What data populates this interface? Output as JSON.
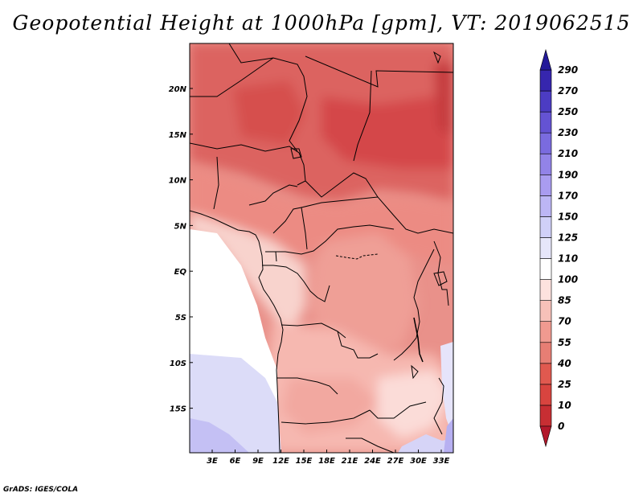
{
  "title": "Geopotential Height at 1000hPa [gpm], VT: 2019062515",
  "credit": "GrADS: IGES/COLA",
  "map": {
    "lat_labels": [
      "20N",
      "15N",
      "10N",
      "5N",
      "EQ",
      "5S",
      "10S",
      "15S"
    ],
    "lon_labels": [
      "3E",
      "6E",
      "9E",
      "12E",
      "15E",
      "18E",
      "21E",
      "24E",
      "27E",
      "30E",
      "33E"
    ]
  },
  "colorbar": {
    "levels": [
      "0",
      "10",
      "25",
      "40",
      "55",
      "70",
      "85",
      "100",
      "110",
      "125",
      "150",
      "170",
      "190",
      "210",
      "230",
      "250",
      "270",
      "290"
    ],
    "colors": [
      "#b2182b",
      "#c72e33",
      "#d8443f",
      "#e0594f",
      "#e77e74",
      "#f09a90",
      "#f7c1b9",
      "#fde2de",
      "#ffffff",
      "#e6e6fa",
      "#d0d0f8",
      "#bcb6f5",
      "#a99cf0",
      "#9283e8",
      "#7a6bdf",
      "#6453d3",
      "#4c3cc3",
      "#3626ae",
      "#231a99"
    ]
  }
}
